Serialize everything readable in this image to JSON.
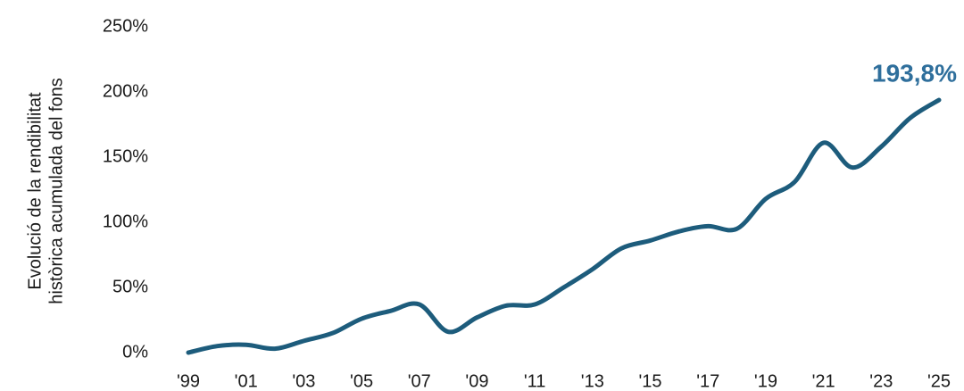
{
  "chart_data": {
    "type": "line",
    "ylabel": [
      "Evolució de la rendibilitat",
      "històrica acumulada del fons"
    ],
    "categories": [
      "'99",
      null,
      "'01",
      null,
      "'03",
      null,
      "'05",
      null,
      "'07",
      null,
      "'09",
      null,
      "'11",
      null,
      "'13",
      null,
      "'15",
      null,
      "'17",
      null,
      "'19",
      null,
      "'21",
      null,
      "'23",
      null,
      "'25"
    ],
    "series": [
      {
        "name": null,
        "color": "#1d5c7c",
        "values": [
          0,
          5,
          6,
          3,
          9,
          15,
          26,
          32,
          37,
          16,
          27,
          36,
          37,
          50,
          64,
          80,
          86,
          93,
          97,
          95,
          118,
          131,
          161,
          142,
          158,
          180,
          193.8
        ],
        "value_labels": [
          null,
          null,
          null,
          null,
          null,
          null,
          null,
          null,
          null,
          null,
          null,
          null,
          null,
          null,
          null,
          null,
          null,
          null,
          null,
          null,
          null,
          null,
          null,
          null,
          null,
          null,
          "193,8%"
        ]
      }
    ],
    "ylim": [
      0,
      250
    ],
    "yticks": [
      {
        "value": 0,
        "label": "0%"
      },
      {
        "value": 50,
        "label": "50%"
      },
      {
        "value": 100,
        "label": "100%"
      },
      {
        "value": 150,
        "label": "150%"
      },
      {
        "value": 200,
        "label": "200%"
      },
      {
        "value": 250,
        "label": "250%"
      }
    ],
    "grid": false,
    "value_label_color": "#2f6f9c"
  }
}
